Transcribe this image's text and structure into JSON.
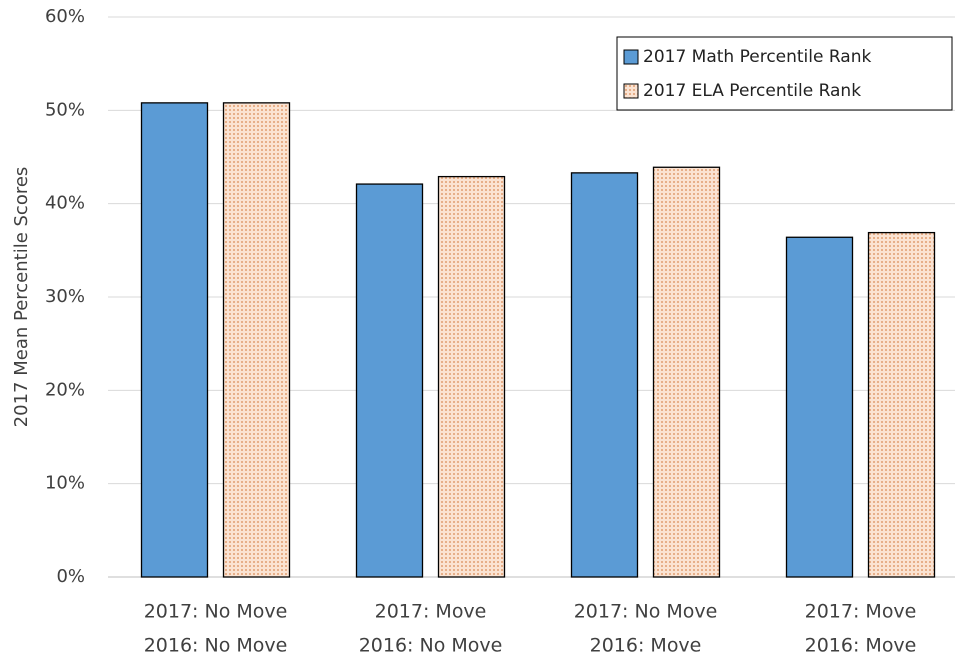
{
  "chart_data": {
    "type": "bar",
    "y_label": "2017 Mean Percentile Scores",
    "categories": [
      [
        "2017: No Move",
        "2016: No Move"
      ],
      [
        "2017: Move",
        "2016: No Move"
      ],
      [
        "2017: No Move",
        "2016: Move"
      ],
      [
        "2017: Move",
        "2016: Move"
      ]
    ],
    "series": [
      {
        "name": "2017 Math Percentile Rank",
        "color": "#5b9bd5",
        "values": [
          50.8,
          42.1,
          43.3,
          36.4
        ]
      },
      {
        "name": "2017 ELA Percentile Rank",
        "color": "#fbe3d2",
        "pattern": "dots",
        "pattern_color": "#d98a55",
        "values": [
          50.8,
          42.9,
          43.9,
          36.9
        ]
      }
    ],
    "ylim": [
      0,
      60
    ],
    "yticks": [
      {
        "value": 0,
        "label": "0%"
      },
      {
        "value": 10,
        "label": "10%"
      },
      {
        "value": 20,
        "label": "20%"
      },
      {
        "value": 30,
        "label": "30%"
      },
      {
        "value": 40,
        "label": "40%"
      },
      {
        "value": 50,
        "label": "50%"
      },
      {
        "value": 60,
        "label": "60%"
      }
    ],
    "grid": true,
    "legend": "top-right"
  }
}
